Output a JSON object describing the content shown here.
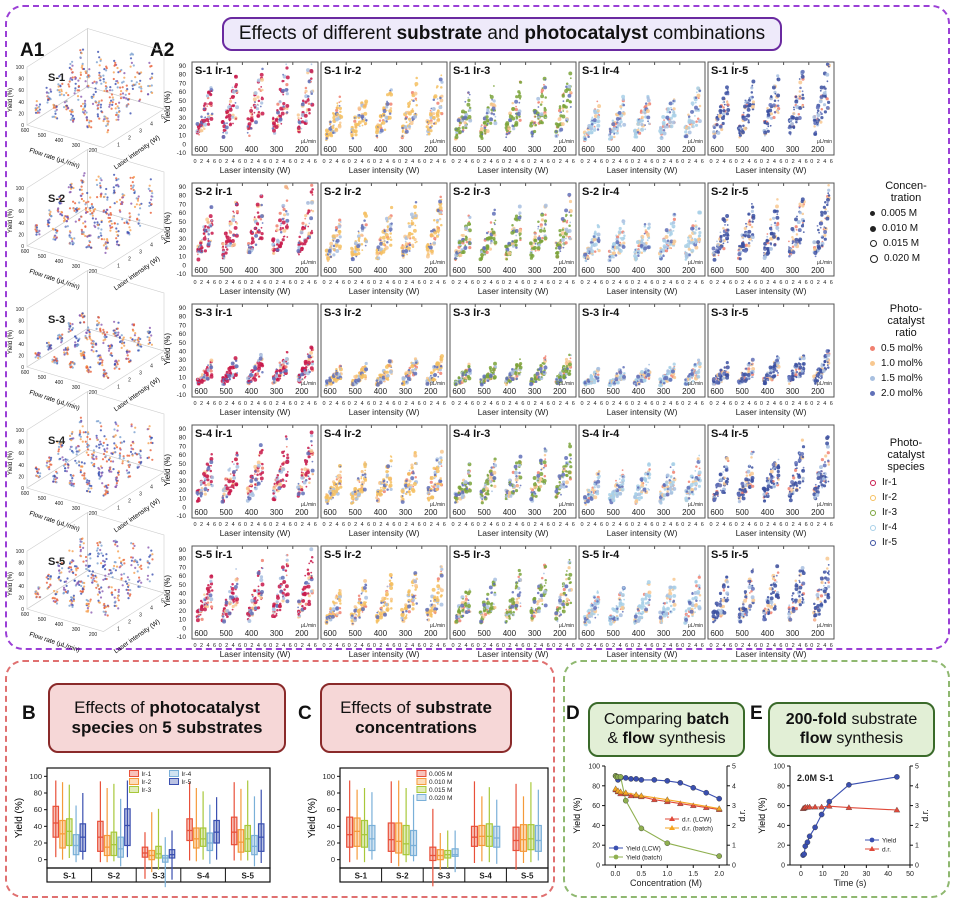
{
  "header": {
    "pre": "Effects of different ",
    "b1": "substrate",
    "mid": " and ",
    "b2": "photocatalyst",
    "post": " combinations"
  },
  "panel_labels": {
    "a1": "A1",
    "a2": "A2",
    "b": "B",
    "c": "C",
    "d": "D",
    "e": "E"
  },
  "titles": {
    "b": {
      "pre": "Effects of ",
      "b1": "photocatalyst",
      "line2b": "species",
      "line2": " on ",
      "b2": "5 substrates"
    },
    "c": {
      "pre": "Effects of ",
      "b1": "substrate",
      "line2b": "concentrations"
    },
    "d": {
      "pre": "Comparing ",
      "b1": "batch",
      "l2a": "& ",
      "b2": "flow",
      "l2b": " synthesis"
    },
    "e": {
      "b1": "200-fold",
      "post": " substrate",
      "b2": "flow",
      "l2b": " synthesis"
    }
  },
  "colors": {
    "purple_frame": "#9b3fd6",
    "red_frame": "#e07070",
    "green_frame": "#8fb870",
    "title_purple_bg": "#eeeafa",
    "title_red_bg": "#f6d7d7",
    "title_green_bg": "#e2efd6"
  },
  "a1": {
    "substrates": [
      "S-1",
      "S-2",
      "S-3",
      "S-4",
      "S-5"
    ],
    "ylabel": "Yield (%)",
    "xlabel": "Flow rate (μL/min)",
    "zlabel": "Laser intensity (W)",
    "yticks": [
      "0",
      "20",
      "40",
      "60",
      "80",
      "100"
    ],
    "flow_ticks": [
      "600",
      "500",
      "400",
      "300",
      "200"
    ],
    "laser_ticks": [
      "1",
      "2",
      "3",
      "4",
      "5"
    ]
  },
  "a2": {
    "substrates": [
      "S-1",
      "S-2",
      "S-3",
      "S-4",
      "S-5"
    ],
    "catalysts": [
      "Ir-1",
      "Ir-2",
      "Ir-3",
      "Ir-4",
      "Ir-5"
    ],
    "flow_rates": [
      "600",
      "500",
      "400",
      "300",
      "200"
    ],
    "flow_unit": "μL/min",
    "yticks": [
      "-10",
      "0",
      "10",
      "20",
      "30",
      "40",
      "50",
      "60",
      "70",
      "80",
      "90"
    ],
    "xticks": [
      "0",
      "2",
      "4",
      "6"
    ],
    "xlabel": "Laser intensity (W)",
    "ylabel": "Yield (%)",
    "catalyst_colors": [
      "#c8174a",
      "#f5c060",
      "#7aa33a",
      "#a8d0e8",
      "#3a4fa0"
    ],
    "ratio_colors": [
      "#f08070",
      "#f8c890",
      "#a8c0e0",
      "#6070b8"
    ]
  },
  "legend": {
    "concentration": {
      "title": "Concen-tration",
      "items": [
        "0.005 M",
        "0.010 M",
        "0.015 M",
        "0.020 M"
      ]
    },
    "ratio": {
      "title": "Photo-catalyst ratio",
      "items": [
        "0.5 mol%",
        "1.0 mol%",
        "1.5 mol%",
        "2.0 mol%"
      ]
    },
    "species": {
      "title": "Photo-catalyst species",
      "items": [
        "Ir-1",
        "Ir-2",
        "Ir-3",
        "Ir-4",
        "Ir-5"
      ]
    }
  },
  "chart_data": [
    {
      "id": "B",
      "type": "box",
      "ylabel": "Yield (%)",
      "ylim": [
        -10,
        110
      ],
      "yticks": [
        0,
        20,
        40,
        60,
        80,
        100
      ],
      "categories": [
        "S-1",
        "S-2",
        "S-3",
        "S-4",
        "S-5"
      ],
      "legend": "top-center",
      "stat_order": [
        "min",
        "q1",
        "median",
        "q3",
        "max"
      ],
      "series": [
        {
          "name": "Ir-1",
          "color": "#e8503a",
          "values": [
            [
              3,
              27,
              44,
              64,
              95
            ],
            [
              -3,
              10,
              27,
              46,
              94
            ],
            [
              -23,
              3,
              8,
              15,
              33
            ],
            [
              -1,
              23,
              35,
              49,
              93
            ],
            [
              -1,
              18,
              33,
              51,
              93
            ]
          ]
        },
        {
          "name": "Ir-2",
          "color": "#f59a3a",
          "values": [
            [
              0,
              14,
              31,
              47,
              93
            ],
            [
              -3,
              5,
              15,
              29,
              86
            ],
            [
              -15,
              0,
              5,
              11,
              57
            ],
            [
              -2,
              14,
              25,
              38,
              86
            ],
            [
              -1,
              9,
              21,
              36,
              85
            ]
          ]
        },
        {
          "name": "Ir-3",
          "color": "#a8c83a",
          "values": [
            [
              2,
              17,
              34,
              49,
              90
            ],
            [
              -2,
              5,
              18,
              33,
              91
            ],
            [
              -12,
              2,
              7,
              16,
              61
            ],
            [
              0,
              16,
              25,
              38,
              82
            ],
            [
              -1,
              10,
              25,
              41,
              95
            ]
          ]
        },
        {
          "name": "Ir-4",
          "color": "#7ab0d8",
          "values": [
            [
              -3,
              6,
              17,
              30,
              65
            ],
            [
              -8,
              3,
              13,
              27,
              73
            ],
            [
              -33,
              -3,
              2,
              5,
              27
            ],
            [
              -5,
              11,
              20,
              32,
              66
            ],
            [
              -8,
              6,
              16,
              29,
              76
            ]
          ]
        },
        {
          "name": "Ir-5",
          "color": "#3a4fb0",
          "values": [
            [
              0,
              10,
              27,
              43,
              80
            ],
            [
              3,
              17,
              41,
              61,
              95
            ],
            [
              -24,
              2,
              6,
              12,
              35
            ],
            [
              0,
              20,
              33,
              47,
              75
            ],
            [
              -4,
              10,
              27,
              43,
              84
            ]
          ]
        }
      ]
    },
    {
      "id": "C",
      "type": "box",
      "ylabel": "Yield (%)",
      "ylim": [
        -10,
        110
      ],
      "yticks": [
        0,
        20,
        40,
        60,
        80,
        100
      ],
      "categories": [
        "S-1",
        "S-2",
        "S-3",
        "S-4",
        "S-5"
      ],
      "legend": "top-center",
      "stat_order": [
        "min",
        "q1",
        "median",
        "q3",
        "max"
      ],
      "series": [
        {
          "name": "0.005 M",
          "color": "#e8503a",
          "values": [
            [
              -3,
              15,
              30,
              51,
              95
            ],
            [
              -4,
              10,
              24,
              44,
              94
            ],
            [
              -32,
              -1,
              5,
              15,
              61
            ],
            [
              -4,
              16,
              27,
              40,
              94
            ],
            [
              -12,
              11,
              23,
              39,
              91
            ]
          ]
        },
        {
          "name": "0.010 M",
          "color": "#f59a3a",
          "values": [
            [
              0,
              16,
              34,
              50,
              84
            ],
            [
              -8,
              8,
              22,
              44,
              95
            ],
            [
              -12,
              0,
              5,
              12,
              32
            ],
            [
              -2,
              17,
              28,
              41,
              76
            ],
            [
              -4,
              10,
              24,
              42,
              76
            ]
          ]
        },
        {
          "name": "0.015 M",
          "color": "#a8c83a",
          "values": [
            [
              -3,
              15,
              30,
              47,
              86
            ],
            [
              -3,
              6,
              19,
              41,
              86
            ],
            [
              -10,
              2,
              6,
              11,
              35
            ],
            [
              -3,
              16,
              28,
              43,
              87
            ],
            [
              -3,
              12,
              25,
              42,
              93
            ]
          ]
        },
        {
          "name": "0.020 M",
          "color": "#7ab0d8",
          "values": [
            [
              0,
              11,
              25,
              41,
              81
            ],
            [
              -2,
              5,
              17,
              35,
              78
            ],
            [
              -15,
              4,
              6,
              13,
              35
            ],
            [
              -5,
              15,
              26,
              40,
              72
            ],
            [
              -1,
              10,
              23,
              41,
              84
            ]
          ]
        }
      ]
    },
    {
      "id": "D",
      "type": "line",
      "xlabel": "Concentration (M)",
      "ylabel": "Yield (%)",
      "y2label": "d.r.",
      "xlim": [
        -0.2,
        2.15
      ],
      "xticks": [
        "0.0",
        "0.5",
        "1.0",
        "1.5",
        "2.0"
      ],
      "ylim": [
        0,
        100
      ],
      "yticks": [
        0,
        20,
        40,
        60,
        80,
        100
      ],
      "y2lim": [
        0,
        5
      ],
      "y2ticks": [
        0,
        1,
        2,
        3,
        4,
        5
      ],
      "series": [
        {
          "name": "Yield (LCW)",
          "axis": "left",
          "marker": "circle",
          "color": "#3a4fb0",
          "x": [
            0.005,
            0.05,
            0.1,
            0.2,
            0.3,
            0.4,
            0.5,
            0.75,
            1.0,
            1.25,
            1.5,
            1.75,
            2.0
          ],
          "y": [
            90,
            86,
            88,
            88,
            87,
            87,
            86,
            86,
            85,
            83,
            78,
            73,
            67
          ]
        },
        {
          "name": "Yield (batch)",
          "axis": "left",
          "marker": "circle",
          "color": "#8fb050",
          "x": [
            0.005,
            0.02,
            0.05,
            0.1,
            0.2,
            0.5,
            1.0,
            2.0
          ],
          "y": [
            90,
            89,
            89,
            89,
            65,
            37,
            22,
            9
          ]
        },
        {
          "name": "d.r. (LCW)",
          "axis": "right",
          "marker": "triangle",
          "color": "#e04a3a",
          "x": [
            0.005,
            0.05,
            0.1,
            0.2,
            0.3,
            0.4,
            0.5,
            0.75,
            1.0,
            1.25,
            1.5,
            1.75,
            2.0
          ],
          "y": [
            3.8,
            3.7,
            3.6,
            3.6,
            3.5,
            3.5,
            3.45,
            3.3,
            3.2,
            3.1,
            3.0,
            2.9,
            2.8
          ]
        },
        {
          "name": "d.r. (batch)",
          "axis": "right",
          "marker": "triangle",
          "color": "#f5a623",
          "x": [
            0.005,
            0.05,
            0.1,
            0.2,
            0.4,
            0.5,
            1.0,
            2.0
          ],
          "y": [
            3.85,
            3.75,
            3.7,
            3.65,
            3.55,
            3.5,
            3.3,
            2.85
          ]
        }
      ]
    },
    {
      "id": "E",
      "type": "line",
      "xlabel": "Time (s)",
      "ylabel": "Yield (%)",
      "y2label": "d.r.",
      "annotation": "2.0M S-1",
      "xlim": [
        -5,
        50
      ],
      "xticks": [
        "0",
        "10",
        "20",
        "30",
        "40",
        "50"
      ],
      "ylim": [
        0,
        100
      ],
      "yticks": [
        0,
        20,
        40,
        60,
        80,
        100
      ],
      "y2lim": [
        0,
        5
      ],
      "y2ticks": [
        0,
        1,
        2,
        3,
        4,
        5
      ],
      "series": [
        {
          "name": "Yield",
          "axis": "left",
          "marker": "circle",
          "color": "#3a4fb0",
          "x": [
            1,
            1.5,
            2,
            3,
            4,
            6.5,
            9.5,
            13,
            22,
            44
          ],
          "y": [
            10,
            11,
            19,
            23,
            29,
            38,
            51,
            64,
            81,
            89
          ]
        },
        {
          "name": "d.r.",
          "axis": "right",
          "marker": "triangle",
          "color": "#e04a3a",
          "x": [
            1,
            1.5,
            2,
            3,
            4,
            6.5,
            9.5,
            13,
            22,
            44
          ],
          "y": [
            2.85,
            2.88,
            2.92,
            2.92,
            2.93,
            2.93,
            2.93,
            2.97,
            2.9,
            2.78
          ]
        }
      ]
    }
  ]
}
